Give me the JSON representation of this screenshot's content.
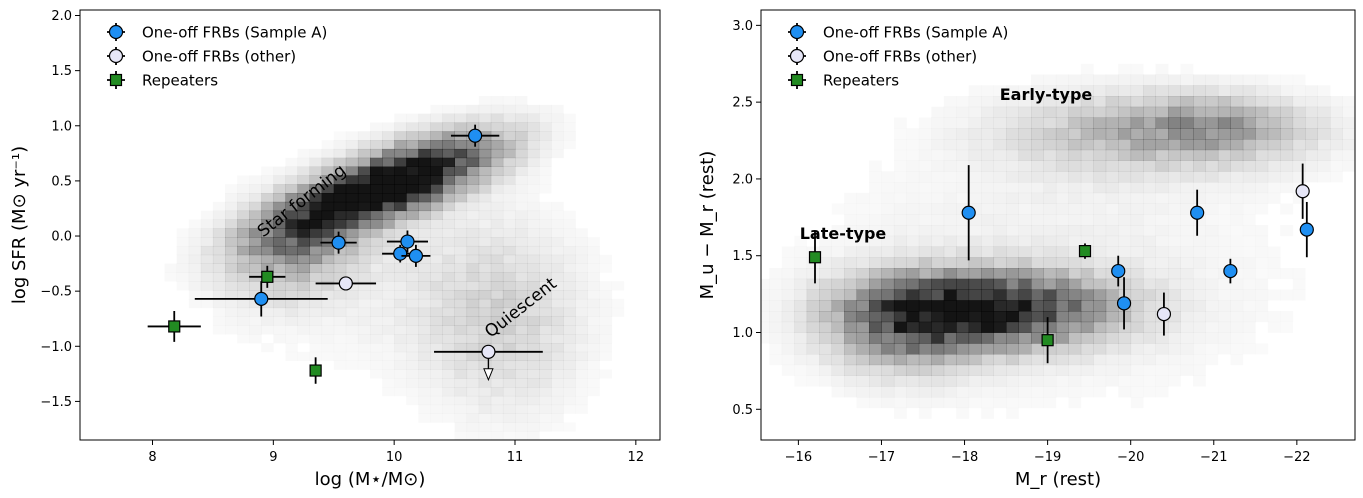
{
  "colors": {
    "sample_a": "#1f8ff2",
    "other": "#e6e6f7",
    "repeater": "#228b22",
    "errorbar": "#000000",
    "density": "#000000"
  },
  "chart_data": [
    {
      "type": "scatter",
      "xlabel": "log (M⋆/M⊙)",
      "ylabel": "log SFR (M⊙ yr⁻¹)",
      "xlim": [
        7.4,
        12.2
      ],
      "ylim": [
        -1.85,
        2.05
      ],
      "xticks": [
        "8",
        "9",
        "10",
        "11",
        "12"
      ],
      "yticks": [
        "−1.5",
        "−1.0",
        "−0.5",
        "0.0",
        "0.5",
        "1.0",
        "1.5",
        "2.0"
      ],
      "legend": {
        "position": "top-left",
        "entries": [
          "One-off FRBs (Sample A)",
          "One-off FRBs (other)",
          "Repeaters"
        ]
      },
      "annotations": [
        "Star forming",
        "Quiescent"
      ],
      "series": [
        {
          "name": "One-off FRBs (Sample A)",
          "marker": "circle",
          "points": [
            {
              "x": 10.67,
              "y": 0.91,
              "xerr": 0.2,
              "yerr": 0.1
            },
            {
              "x": 9.54,
              "y": -0.06,
              "xerr": 0.15,
              "yerr": 0.1
            },
            {
              "x": 10.11,
              "y": -0.05,
              "xerr": 0.17,
              "yerr": 0.1
            },
            {
              "x": 10.05,
              "y": -0.16,
              "xerr": 0.15,
              "yerr": 0.08
            },
            {
              "x": 10.18,
              "y": -0.18,
              "xerr": 0.12,
              "yerr": 0.1
            },
            {
              "x": 8.9,
              "y": -0.57,
              "xerr": 0.55,
              "yerr": 0.16
            }
          ]
        },
        {
          "name": "One-off FRBs (other)",
          "marker": "circle",
          "points": [
            {
              "x": 9.6,
              "y": -0.43,
              "xerr": 0.25,
              "yerr": 0.0
            },
            {
              "x": 10.78,
              "y": -1.05,
              "xerr": 0.45,
              "yerr": 0.0,
              "upper_limit": true
            }
          ]
        },
        {
          "name": "Repeaters",
          "marker": "square",
          "points": [
            {
              "x": 8.95,
              "y": -0.37,
              "xerr": 0.15,
              "yerr": 0.1
            },
            {
              "x": 8.18,
              "y": -0.82,
              "xerr": 0.22,
              "yerr": 0.14
            },
            {
              "x": 9.35,
              "y": -1.22,
              "xerr": 0.0,
              "yerr": 0.12
            }
          ]
        }
      ]
    },
    {
      "type": "scatter",
      "xlabel": "M_r (rest)",
      "ylabel": "M_u − M_r (rest)",
      "xlim": [
        -15.55,
        -22.7
      ],
      "ylim": [
        0.3,
        3.1
      ],
      "xticks": [
        "−16",
        "−17",
        "−18",
        "−19",
        "−20",
        "−21",
        "−22"
      ],
      "yticks": [
        "0.5",
        "1.0",
        "1.5",
        "2.0",
        "2.5",
        "3.0"
      ],
      "legend": {
        "position": "top-left",
        "entries": [
          "One-off FRBs (Sample A)",
          "One-off FRBs (other)",
          "Repeaters"
        ]
      },
      "annotations": [
        "Early-type",
        "Late-type"
      ],
      "series": [
        {
          "name": "One-off FRBs (Sample A)",
          "marker": "circle",
          "points": [
            {
              "x": -18.05,
              "y": 1.78,
              "yerr": 0.31
            },
            {
              "x": -19.85,
              "y": 1.4,
              "yerr": 0.1
            },
            {
              "x": -19.92,
              "y": 1.19,
              "yerr": 0.17
            },
            {
              "x": -20.8,
              "y": 1.78,
              "yerr": 0.15
            },
            {
              "x": -21.2,
              "y": 1.4,
              "yerr": 0.08
            },
            {
              "x": -22.12,
              "y": 1.67,
              "yerr": 0.18
            }
          ]
        },
        {
          "name": "One-off FRBs (other)",
          "marker": "circle",
          "points": [
            {
              "x": -20.4,
              "y": 1.12,
              "yerr": 0.14
            },
            {
              "x": -22.07,
              "y": 1.92,
              "yerr": 0.18
            }
          ]
        },
        {
          "name": "Repeaters",
          "marker": "square",
          "points": [
            {
              "x": -16.2,
              "y": 1.49,
              "yerr": 0.17
            },
            {
              "x": -19.45,
              "y": 1.53,
              "yerr": 0.05
            },
            {
              "x": -19.0,
              "y": 0.95,
              "yerr": 0.15
            }
          ]
        }
      ]
    }
  ]
}
